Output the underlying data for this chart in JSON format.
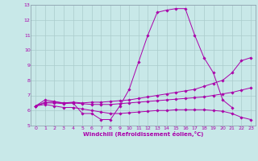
{
  "title": "",
  "xlabel": "Windchill (Refroidissement éolien,°C)",
  "ylabel": "",
  "xlim": [
    -0.5,
    23.5
  ],
  "ylim": [
    5,
    13
  ],
  "xticks": [
    0,
    1,
    2,
    3,
    4,
    5,
    6,
    7,
    8,
    9,
    10,
    11,
    12,
    13,
    14,
    15,
    16,
    17,
    18,
    19,
    20,
    21,
    22,
    23
  ],
  "yticks": [
    5,
    6,
    7,
    8,
    9,
    10,
    11,
    12,
    13
  ],
  "background_color": "#c8e8e8",
  "line_color": "#aa00aa",
  "grid_color": "#aacccc",
  "lines": [
    {
      "x": [
        0,
        1,
        2,
        3,
        4,
        5,
        6,
        7,
        8,
        9,
        10,
        11,
        12,
        13,
        14,
        15,
        16,
        17,
        18,
        19,
        20,
        21
      ],
      "y": [
        6.3,
        6.7,
        6.6,
        6.5,
        6.5,
        5.8,
        5.8,
        5.4,
        5.4,
        6.3,
        7.4,
        9.2,
        11.0,
        12.5,
        12.65,
        12.75,
        12.75,
        11.0,
        9.5,
        8.5,
        6.7,
        6.2
      ]
    },
    {
      "x": [
        0,
        1,
        2,
        3,
        4,
        5,
        6,
        7,
        8,
        9,
        10,
        11,
        12,
        13,
        14,
        15,
        16,
        17,
        18,
        19,
        20,
        21,
        22,
        23
      ],
      "y": [
        6.3,
        6.55,
        6.55,
        6.5,
        6.55,
        6.5,
        6.55,
        6.55,
        6.6,
        6.65,
        6.7,
        6.8,
        6.9,
        7.0,
        7.1,
        7.2,
        7.3,
        7.4,
        7.6,
        7.8,
        8.0,
        8.5,
        9.3,
        9.5
      ]
    },
    {
      "x": [
        0,
        1,
        2,
        3,
        4,
        5,
        6,
        7,
        8,
        9,
        10,
        11,
        12,
        13,
        14,
        15,
        16,
        17,
        18,
        19,
        20,
        21,
        22,
        23
      ],
      "y": [
        6.3,
        6.5,
        6.5,
        6.45,
        6.5,
        6.45,
        6.4,
        6.4,
        6.4,
        6.45,
        6.5,
        6.55,
        6.6,
        6.65,
        6.7,
        6.75,
        6.8,
        6.85,
        6.9,
        7.0,
        7.1,
        7.2,
        7.35,
        7.5
      ]
    },
    {
      "x": [
        0,
        1,
        2,
        3,
        4,
        5,
        6,
        7,
        8,
        9,
        10,
        11,
        12,
        13,
        14,
        15,
        16,
        17,
        18,
        19,
        20,
        21,
        22,
        23
      ],
      "y": [
        6.3,
        6.4,
        6.3,
        6.2,
        6.2,
        6.1,
        6.0,
        5.9,
        5.8,
        5.8,
        5.85,
        5.9,
        5.95,
        6.0,
        6.0,
        6.05,
        6.05,
        6.05,
        6.05,
        6.0,
        5.95,
        5.8,
        5.55,
        5.4
      ]
    }
  ]
}
